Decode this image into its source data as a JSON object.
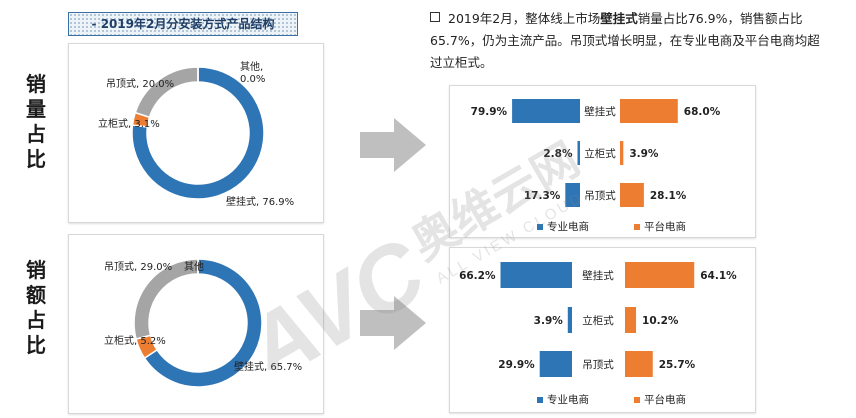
{
  "header": {
    "title": "- 2019年2月分安装方式产品结构"
  },
  "side_labels": {
    "volume": "销量占比",
    "sales": "销额占比"
  },
  "summary": {
    "part1": "2019年2月，整体线上市场",
    "highlight": "壁挂式",
    "part2": "销量占比76.9%，销售额占比65.7%，仍为主流产品。吊顶式增长明显，在专业电商及平台电商均超过立柜式。"
  },
  "watermark": {
    "logo": "AVC",
    "cn": "奥维云网",
    "en": "ALL VIEW CLOUD"
  },
  "colors": {
    "wall": "#2e75b6",
    "cabinet": "#ed7d31",
    "ceiling": "#a5a5a5",
    "other": "#ffc000",
    "arrow": "#bfbfbf"
  },
  "chart_data": [
    {
      "type": "pie",
      "variant": "donut",
      "title": "销量占比",
      "labels": [
        "壁挂式",
        "立柜式",
        "吊顶式",
        "其他"
      ],
      "values": [
        76.9,
        3.1,
        20.0,
        0.0
      ],
      "data_labels": [
        "壁挂式, 76.9%",
        "立柜式, 3.1%",
        "吊顶式, 20.0%",
        "其他,\n0.0%"
      ]
    },
    {
      "type": "pie",
      "variant": "donut",
      "title": "销额占比",
      "labels": [
        "壁挂式",
        "立柜式",
        "吊顶式",
        "其他"
      ],
      "values": [
        65.7,
        5.2,
        29.0,
        0.0
      ],
      "data_labels": [
        "壁挂式, 65.7%",
        "立柜式, 5.2%",
        "吊顶式, 29.0%",
        "其他"
      ]
    },
    {
      "type": "bar",
      "orientation": "horizontal",
      "title": "销量占比",
      "categories": [
        "壁挂式",
        "立柜式",
        "吊顶式"
      ],
      "series": [
        {
          "name": "专业电商",
          "values": [
            79.9,
            2.8,
            17.3
          ],
          "labels": [
            "79.9%",
            "2.8%",
            "17.3%"
          ]
        },
        {
          "name": "平台电商",
          "values": [
            68.0,
            3.9,
            28.1
          ],
          "labels": [
            "68.0%",
            "3.9%",
            "28.1%"
          ]
        }
      ],
      "legend": "bottom"
    },
    {
      "type": "bar",
      "orientation": "horizontal",
      "title": "销额占比",
      "categories": [
        "壁挂式",
        "立柜式",
        "吊顶式"
      ],
      "series": [
        {
          "name": "专业电商",
          "values": [
            66.2,
            3.9,
            29.9
          ],
          "labels": [
            "66.2%",
            "3.9%",
            "29.9%"
          ]
        },
        {
          "name": "平台电商",
          "values": [
            64.1,
            10.2,
            25.7
          ],
          "labels": [
            "64.1%",
            "10.2%",
            "25.7%"
          ]
        }
      ],
      "legend": "bottom"
    }
  ]
}
